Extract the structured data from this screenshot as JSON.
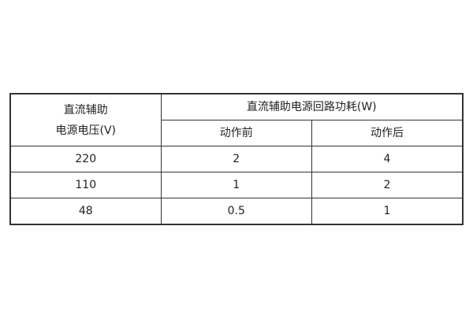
{
  "table": {
    "col0_header_line1": "直流辅助",
    "col0_header_line2": "电源电压(V)",
    "group_header": "直流辅助电源回路功耗(W)",
    "sub_headers": [
      "动作前",
      "动作后"
    ],
    "rows": [
      [
        "220",
        "2",
        "4"
      ],
      [
        "110",
        "1",
        "2"
      ],
      [
        "48",
        "0.5",
        "1"
      ]
    ]
  }
}
